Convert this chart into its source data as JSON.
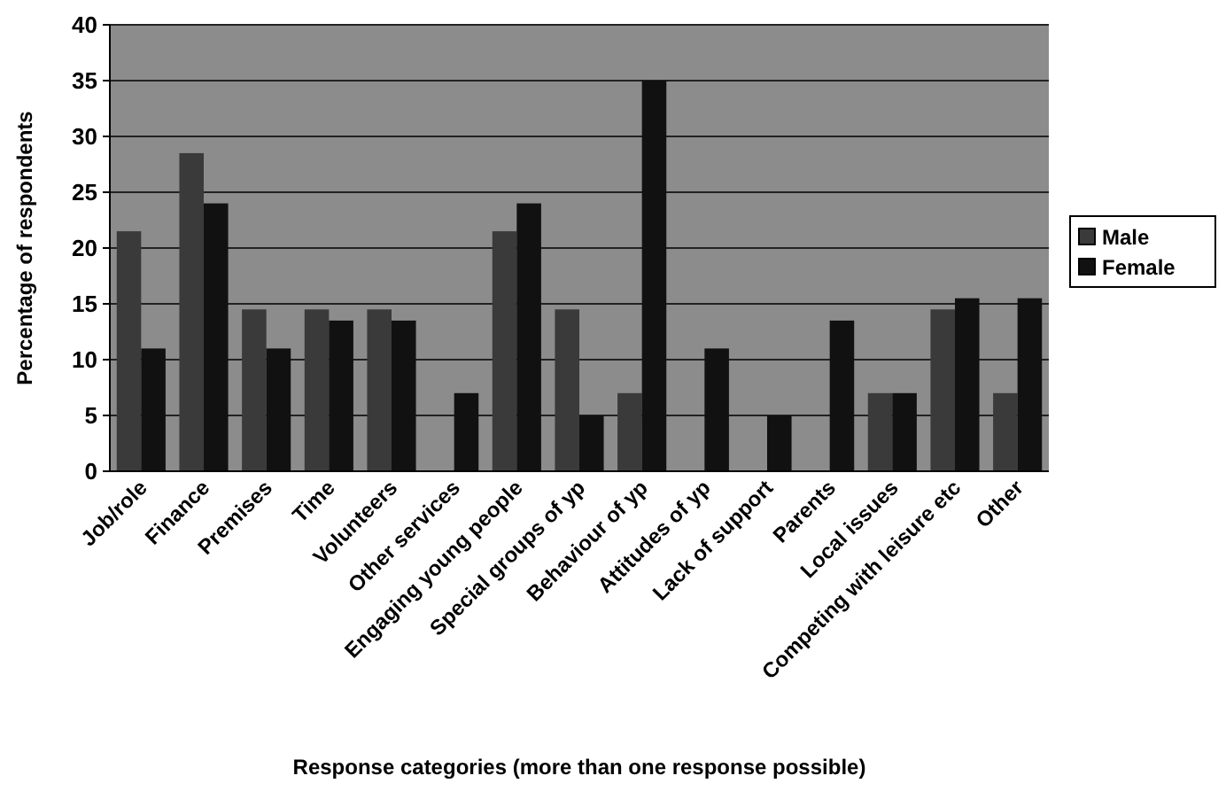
{
  "chart_data": {
    "type": "bar",
    "xlabel": "Response categories (more than one response possible)",
    "ylabel": "Percentage of respondents",
    "categories": [
      "Job/role",
      "Finance",
      "Premises",
      "Time",
      "Volunteers",
      "Other services",
      "Engaging young people",
      "Special groups of yp",
      "Behaviour of yp",
      "Attitudes of yp",
      "Lack of support",
      "Parents",
      "Local issues",
      "Competing with leisure etc",
      "Other"
    ],
    "series": [
      {
        "name": "Male",
        "color": "#3a3a3a",
        "values": [
          21.5,
          28.5,
          14.5,
          14.5,
          14.5,
          0,
          21.5,
          14.5,
          7,
          0,
          0,
          0,
          7,
          14.5,
          7
        ]
      },
      {
        "name": "Female",
        "color": "#111111",
        "values": [
          11,
          24,
          11,
          13.5,
          13.5,
          7,
          24,
          5,
          35,
          11,
          5,
          13.5,
          7,
          15.5,
          15.5
        ]
      }
    ],
    "ylim": [
      0,
      40
    ],
    "yticks": [
      0,
      5,
      10,
      15,
      20,
      25,
      30,
      35,
      40
    ],
    "grid": "y",
    "legend": "right"
  }
}
